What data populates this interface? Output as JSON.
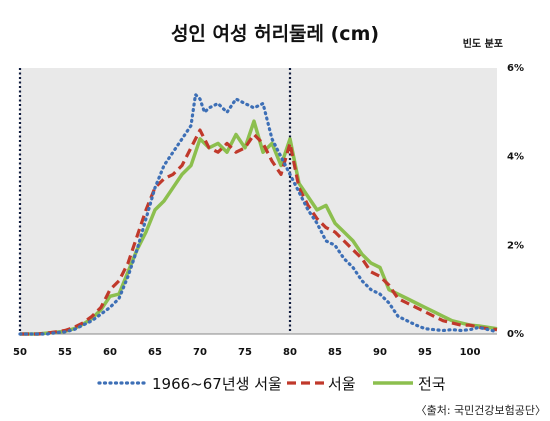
{
  "chart_data": {
    "type": "line",
    "title": "성인 여성 허리둘레 (cm)",
    "ylabel": "빈도 분포",
    "xlim": [
      50,
      103
    ],
    "ylim": [
      0,
      6
    ],
    "x_ticks": [
      50,
      55,
      60,
      65,
      70,
      75,
      80,
      85,
      90,
      95,
      100
    ],
    "y_ticks": [
      0,
      2,
      4,
      6
    ],
    "y_tick_labels": [
      "0%",
      "2%",
      "4%",
      "6%"
    ],
    "y_axis_position": "right",
    "grid": false,
    "reference_lines_x": [
      50,
      80
    ],
    "legend_position": "bottom",
    "series": [
      {
        "name": "1966~67년생 서울",
        "style": "dotted",
        "color": "#3d6fb6",
        "x": [
          50,
          51,
          52,
          53,
          54,
          55,
          56,
          57,
          58,
          59,
          60,
          61,
          62,
          63,
          64,
          65,
          66,
          67,
          68,
          69,
          69.5,
          70,
          70.5,
          71,
          72,
          73,
          74,
          75,
          76,
          77,
          78,
          79,
          80,
          81,
          82,
          83,
          84,
          85,
          86,
          87,
          88,
          89,
          90,
          91,
          92,
          93,
          94,
          95,
          96,
          97,
          98,
          99,
          100,
          101,
          102,
          103
        ],
        "y": [
          0,
          0,
          0,
          0,
          0.03,
          0.05,
          0.1,
          0.2,
          0.3,
          0.45,
          0.6,
          0.8,
          1.3,
          1.9,
          2.6,
          3.3,
          3.8,
          4.1,
          4.4,
          4.7,
          5.4,
          5.3,
          5.0,
          5.1,
          5.2,
          5.0,
          5.3,
          5.2,
          5.1,
          5.2,
          4.4,
          4.0,
          3.6,
          3.2,
          2.8,
          2.5,
          2.1,
          2.0,
          1.7,
          1.5,
          1.2,
          1.0,
          0.9,
          0.7,
          0.4,
          0.3,
          0.2,
          0.12,
          0.1,
          0.08,
          0.1,
          0.08,
          0.1,
          0.15,
          0.1,
          0.05
        ]
      },
      {
        "name": "서울",
        "style": "dashed",
        "color": "#c0392b",
        "x": [
          50,
          51,
          52,
          53,
          54,
          55,
          56,
          57,
          58,
          59,
          60,
          61,
          62,
          63,
          64,
          65,
          66,
          67,
          68,
          69,
          70,
          71,
          72,
          73,
          74,
          75,
          76,
          77,
          78,
          79,
          80,
          81,
          82,
          83,
          84,
          85,
          86,
          87,
          88,
          89,
          90,
          91,
          92,
          93,
          94,
          95,
          96,
          97,
          98,
          99,
          100,
          101,
          102,
          103
        ],
        "y": [
          0,
          0,
          0,
          0.02,
          0.05,
          0.08,
          0.15,
          0.25,
          0.4,
          0.6,
          1.0,
          1.2,
          1.6,
          2.2,
          2.8,
          3.3,
          3.5,
          3.6,
          3.8,
          4.2,
          4.6,
          4.2,
          4.1,
          4.3,
          4.1,
          4.2,
          4.5,
          4.3,
          3.9,
          3.6,
          4.3,
          3.3,
          2.9,
          2.6,
          2.4,
          2.3,
          2.1,
          1.9,
          1.7,
          1.4,
          1.3,
          1.1,
          0.8,
          0.7,
          0.6,
          0.5,
          0.4,
          0.3,
          0.25,
          0.2,
          0.2,
          0.15,
          0.12,
          0.1
        ]
      },
      {
        "name": "전국",
        "style": "solid",
        "color": "#8cbf4e",
        "x": [
          50,
          51,
          52,
          53,
          54,
          55,
          56,
          57,
          58,
          59,
          60,
          61,
          62,
          63,
          64,
          65,
          66,
          67,
          68,
          69,
          70,
          71,
          72,
          73,
          74,
          75,
          76,
          77,
          78,
          79,
          80,
          81,
          82,
          83,
          84,
          85,
          86,
          87,
          88,
          89,
          90,
          91,
          92,
          93,
          94,
          95,
          96,
          97,
          98,
          99,
          100,
          101,
          102,
          103
        ],
        "y": [
          0,
          0,
          0,
          0.02,
          0.04,
          0.06,
          0.12,
          0.22,
          0.35,
          0.55,
          0.85,
          0.9,
          1.4,
          1.9,
          2.3,
          2.8,
          3.0,
          3.3,
          3.6,
          3.8,
          4.4,
          4.2,
          4.3,
          4.1,
          4.5,
          4.2,
          4.8,
          4.1,
          4.3,
          3.8,
          4.4,
          3.4,
          3.1,
          2.8,
          2.9,
          2.5,
          2.3,
          2.1,
          1.8,
          1.6,
          1.5,
          1.0,
          0.9,
          0.8,
          0.7,
          0.6,
          0.5,
          0.4,
          0.3,
          0.25,
          0.2,
          0.18,
          0.15,
          0.12
        ]
      }
    ]
  },
  "source_note": "〈출처: 국민건강보험공단〉"
}
